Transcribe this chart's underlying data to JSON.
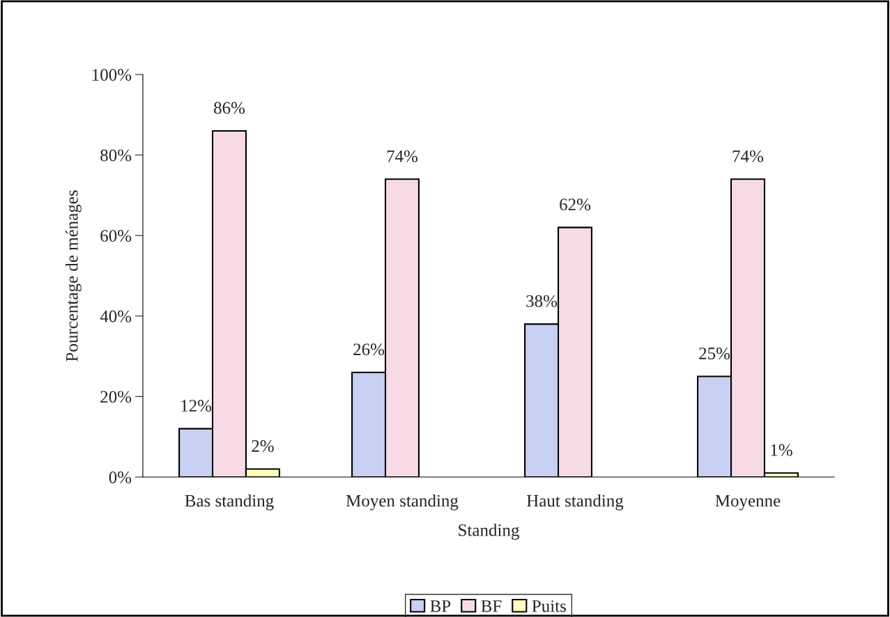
{
  "chart_data": {
    "type": "bar",
    "xlabel": "Standing",
    "ylabel": "Pourcentage de ménages",
    "categories": [
      "Bas standing",
      "Moyen standing",
      "Haut standing",
      "Moyenne"
    ],
    "series": [
      {
        "name": "BP",
        "color": "#c8d0f4",
        "values": [
          12,
          26,
          38,
          25
        ],
        "value_labels": [
          "12%",
          "26%",
          "38%",
          "25%"
        ]
      },
      {
        "name": "BF",
        "color": "#f6dbe6",
        "values": [
          86,
          74,
          62,
          74
        ],
        "value_labels": [
          "86%",
          "74%",
          "62%",
          "74%"
        ]
      },
      {
        "name": "Puits",
        "color": "#ffffc0",
        "values": [
          2,
          null,
          null,
          1
        ],
        "value_labels": [
          "2%",
          null,
          null,
          "1%"
        ]
      }
    ],
    "ylim": [
      0,
      100
    ],
    "yticks": [
      {
        "value": 0,
        "label": "0%"
      },
      {
        "value": 20,
        "label": "20%"
      },
      {
        "value": 40,
        "label": "40%"
      },
      {
        "value": 60,
        "label": "60%"
      },
      {
        "value": 80,
        "label": "80%"
      },
      {
        "value": 100,
        "label": "100%"
      }
    ],
    "grid": false,
    "legend": "bottom"
  }
}
